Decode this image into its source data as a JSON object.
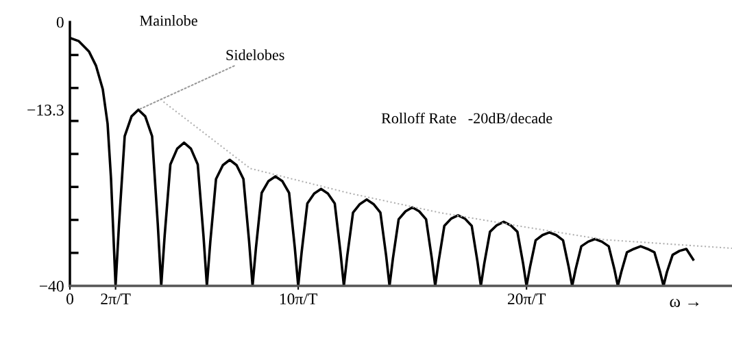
{
  "chart_data": {
    "type": "line",
    "annotations": [
      "Mainlobe",
      {
        "text": "Sidelobes",
        "x": 3,
        "y": -13.3
      },
      "Rolloff Rate   -20dB/decade"
    ],
    "xlabel": "ω →",
    "series": [
      {
        "color": "#000000",
        "line_style": "solid",
        "x": [
          0,
          0.39,
          0.84,
          1.14,
          1.44,
          1.65,
          1.8,
          1.89,
          2,
          2.15,
          2.4,
          2.7,
          3,
          3.3,
          3.6,
          3.85,
          4,
          4.15,
          4.4,
          4.7,
          5,
          5.3,
          5.6,
          5.85,
          6,
          6.15,
          6.4,
          6.7,
          7,
          7.3,
          7.6,
          7.85,
          8,
          8.15,
          8.4,
          8.7,
          9,
          9.3,
          9.6,
          9.85,
          10,
          10.15,
          10.4,
          10.7,
          11,
          11.3,
          11.6,
          11.85,
          12,
          12.15,
          12.4,
          12.7,
          13,
          13.3,
          13.6,
          13.85,
          14,
          14.15,
          14.4,
          14.7,
          15,
          15.3,
          15.6,
          15.85,
          16,
          16.15,
          16.4,
          16.7,
          17,
          17.3,
          17.6,
          17.85,
          18,
          18.15,
          18.4,
          18.7,
          19,
          19.3,
          19.6,
          19.85,
          20,
          20.15,
          20.4,
          20.7,
          21,
          21.3,
          21.6,
          21.85,
          22,
          22.15,
          22.4,
          22.7,
          23,
          23.3,
          23.6,
          23.85,
          24,
          24.15,
          24.4,
          24.7,
          25,
          25.3,
          25.6,
          25.85,
          26,
          26.15,
          26.4,
          26.7,
          27,
          27.3
        ],
        "values": [
          -2.4,
          -2.9,
          -4.5,
          -6.6,
          -10.2,
          -15.4,
          -23.7,
          -31,
          -40,
          -30.7,
          -17.3,
          -14.3,
          -13.3,
          -14.3,
          -17.3,
          -30.7,
          -40,
          -32.4,
          -21.6,
          -19.2,
          -18.3,
          -19.2,
          -21.6,
          -32.4,
          -40,
          -33.3,
          -23.8,
          -21.7,
          -20.9,
          -21.7,
          -23.8,
          -33.3,
          -40,
          -34.2,
          -25.9,
          -24.1,
          -23.4,
          -24.1,
          -25.9,
          -34.2,
          -40,
          -34.9,
          -27.5,
          -26.0,
          -25.3,
          -26.0,
          -27.5,
          -34.9,
          -40,
          -35.4,
          -28.9,
          -27.6,
          -26.9,
          -27.6,
          -28.9,
          -35.4,
          -40,
          -35.8,
          -29.9,
          -28.7,
          -28.1,
          -28.7,
          -29.9,
          -35.8,
          -40,
          -36.3,
          -30.9,
          -29.8,
          -29.3,
          -29.8,
          -30.9,
          -36.3,
          -40,
          -36.6,
          -31.8,
          -30.8,
          -30.3,
          -30.8,
          -31.8,
          -36.6,
          -40,
          -37.2,
          -33.1,
          -32.3,
          -31.9,
          -32.3,
          -33.1,
          -37.2,
          -40,
          -37.5,
          -34.0,
          -33.3,
          -32.9,
          -33.3,
          -34.0,
          -37.5,
          -40,
          -37.9,
          -34.9,
          -34.4,
          -34.0,
          -34.4,
          -34.9,
          -37.9,
          -40,
          -37.9,
          -35.3,
          -34.7,
          -34.4,
          -36
        ]
      },
      {
        "color": "#b0b0b0",
        "line_style": "dotted",
        "x": [
          4.1,
          7.9,
          12.3,
          16.2,
          19.8,
          23.4,
          29
        ],
        "values": [
          -12.1,
          -22.2,
          -26.0,
          -28.9,
          -31.0,
          -33.0,
          -34.3
        ]
      }
    ],
    "xlim": [
      0,
      29
    ],
    "ylim": [
      -40,
      0
    ],
    "xticks": [
      {
        "value": 0,
        "label": "0"
      },
      {
        "value": 2,
        "label": "2π/T"
      },
      {
        "value": 10,
        "label": "10π/T"
      },
      {
        "value": 20,
        "label": "20π/T"
      }
    ],
    "yticks": [
      {
        "value": 0,
        "label": "0"
      },
      {
        "value": -5,
        "label": null
      },
      {
        "value": -10,
        "label": null
      },
      {
        "value": -13.3,
        "label": "−13.3"
      },
      {
        "value": -15,
        "label": null
      },
      {
        "value": -20,
        "label": null
      },
      {
        "value": -25,
        "label": null
      },
      {
        "value": -30,
        "label": null
      },
      {
        "value": -35,
        "label": null
      },
      {
        "value": -40,
        "label": "−40"
      }
    ],
    "grid": false,
    "legend": false,
    "marker": "none"
  }
}
